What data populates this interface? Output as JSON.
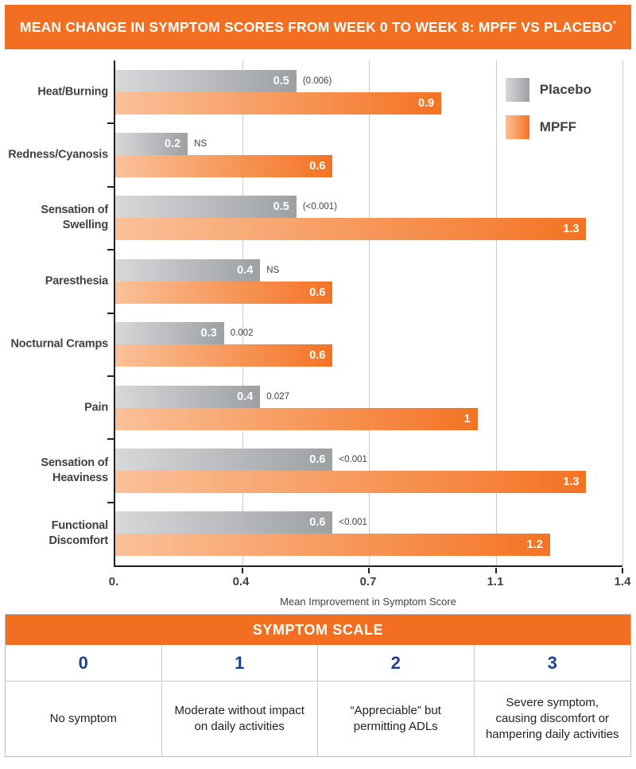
{
  "header": {
    "title": "MEAN CHANGE IN SYMPTOM SCORES FROM WEEK 0 TO WEEK 8: MPFF VS PLACEBO",
    "superscript": "*"
  },
  "colors": {
    "orange": "#F26F21",
    "orange_bar": "#F47323",
    "orange_light": "#FAC199",
    "gray": "#9DA0A3",
    "gray_light": "#D7D8DA",
    "blue": "#1B4193",
    "text": "#414042",
    "grid": "#C9CACB",
    "axis": "#231F20",
    "border": "#BDBDBD",
    "cellline": "#C9C9C9"
  },
  "chart_data": {
    "type": "bar",
    "orientation": "horizontal",
    "categories": [
      "Heat/Burning",
      "Redness/Cyanosis",
      "Sensation of Swelling",
      "Paresthesia",
      "Nocturnal Cramps",
      "Pain",
      "Sensation of Heaviness",
      "Functional Discomfort"
    ],
    "series": [
      {
        "name": "Placebo",
        "values": [
          0.5,
          0.2,
          0.5,
          0.4,
          0.3,
          0.4,
          0.6,
          0.6
        ],
        "value_labels": [
          "0.5",
          "0.2",
          "0.5",
          "0.4",
          "0.3",
          "0.4",
          "0.6",
          "0.6"
        ],
        "p_values": [
          "(0.006)",
          "NS",
          "(<0.001)",
          "NS",
          "0.002",
          "0.027",
          "<0.001",
          "<0.001"
        ]
      },
      {
        "name": "MPFF",
        "values": [
          0.9,
          0.6,
          1.3,
          0.6,
          0.6,
          1.0,
          1.3,
          1.2
        ],
        "value_labels": [
          "0.9",
          "0.6",
          "1.3",
          "0.6",
          "0.6",
          "1",
          "1.3",
          "1.2"
        ]
      }
    ],
    "xlabel": "Mean Improvement in Symptom Score",
    "xlim": [
      0,
      1.4
    ],
    "xtick_labels": [
      "0.",
      "0.4",
      "0.7",
      "1.1",
      "1.4"
    ],
    "xtick_positions_pct": [
      0,
      25,
      50,
      75,
      100
    ],
    "gridline_positions_pct": [
      25,
      50,
      75,
      100
    ],
    "legend": [
      "Placebo",
      "MPFF"
    ],
    "legend_position": "top-right",
    "grid": true
  },
  "scale_table": {
    "title": "SYMPTOM SCALE",
    "columns": [
      {
        "score": "0",
        "description": "No symptom"
      },
      {
        "score": "1",
        "description": "Moderate without impact on daily activities"
      },
      {
        "score": "2",
        "description": "“Appreciable” but permitting ADLs"
      },
      {
        "score": "3",
        "description": "Severe symptom, causing discomfort or hampering daily activities"
      }
    ]
  }
}
